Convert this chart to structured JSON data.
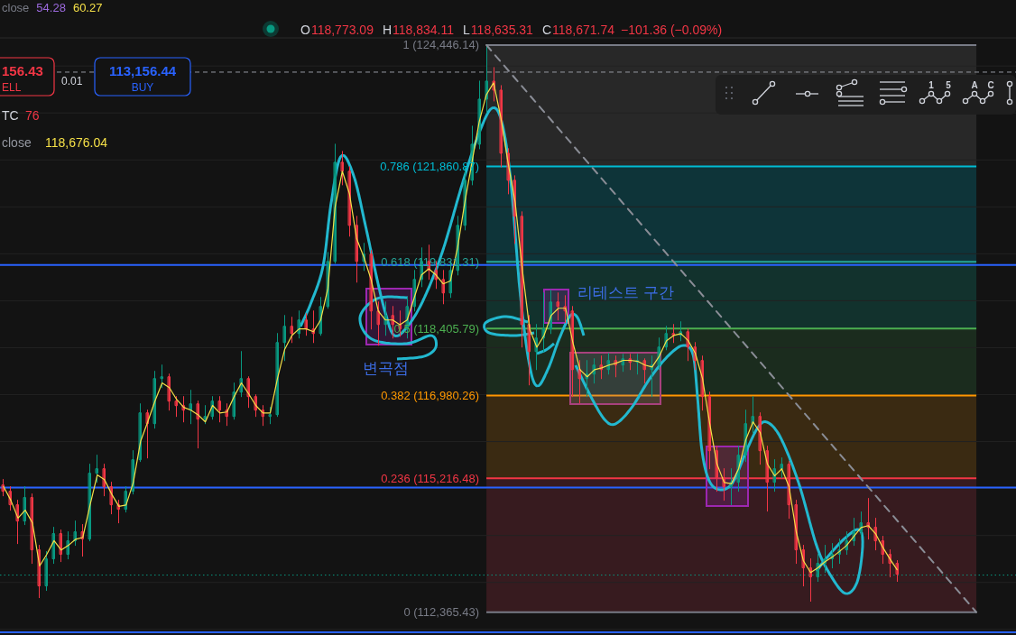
{
  "chart_data": {
    "type": "candlestick",
    "categories": [
      null,
      null,
      null,
      null,
      null,
      null,
      null,
      null,
      null,
      null,
      null,
      null,
      null,
      null,
      null,
      null,
      null,
      null,
      null,
      null,
      null,
      null,
      null,
      null,
      null,
      null,
      null,
      null,
      null,
      null,
      null,
      null,
      null,
      null,
      null,
      null,
      null,
      null,
      null,
      null,
      null,
      null,
      null,
      null,
      null,
      null,
      null,
      null,
      null,
      null,
      null,
      null,
      null,
      null,
      null,
      null,
      null,
      null,
      null,
      null,
      null,
      null,
      null,
      null,
      null,
      null,
      null,
      null,
      null,
      null,
      null,
      null,
      null,
      null,
      null,
      null,
      null,
      null,
      null,
      null,
      null,
      null,
      null,
      null,
      null,
      null,
      null,
      null,
      null,
      null,
      null,
      null,
      null,
      null,
      null,
      null,
      null,
      null,
      null,
      null,
      null,
      null,
      null,
      null,
      null,
      null,
      null,
      null,
      null,
      null,
      null,
      null,
      null,
      null,
      null,
      null,
      null,
      null,
      null,
      null,
      null,
      null,
      null,
      null,
      null,
      null,
      null,
      null,
      null,
      null,
      null,
      null,
      null,
      null,
      null,
      null,
      null,
      null,
      null,
      null,
      null
    ],
    "ohlc": [
      [
        115076,
        115192,
        114846,
        114942
      ],
      [
        114942,
        115038,
        114539,
        114654
      ],
      [
        114654,
        114750,
        113828,
        114308
      ],
      [
        114308,
        115038,
        114232,
        114808
      ],
      [
        114808,
        114884,
        113406,
        113694
      ],
      [
        113694,
        113790,
        112676,
        112926
      ],
      [
        112926,
        113656,
        112830,
        113502
      ],
      [
        113502,
        114174,
        113406,
        114040
      ],
      [
        114040,
        114116,
        113444,
        113598
      ],
      [
        113598,
        114078,
        113502,
        113886
      ],
      [
        113886,
        114308,
        113790,
        114078
      ],
      [
        114078,
        114232,
        113560,
        113924
      ],
      [
        113924,
        115518,
        113886,
        115326
      ],
      [
        115326,
        115710,
        115134,
        115422
      ],
      [
        115422,
        115518,
        114846,
        115038
      ],
      [
        115038,
        115134,
        114462,
        114654
      ],
      [
        114654,
        114750,
        114270,
        114558
      ],
      [
        114558,
        115038,
        114500,
        114942
      ],
      [
        114942,
        115806,
        114884,
        115614
      ],
      [
        115614,
        116804,
        115576,
        116612
      ],
      [
        116612,
        116670,
        115652,
        116382
      ],
      [
        116382,
        117496,
        116286,
        117342
      ],
      [
        117342,
        117630,
        117150,
        117380
      ],
      [
        117380,
        117438,
        116670,
        116862
      ],
      [
        116862,
        116958,
        116536,
        116766
      ],
      [
        116766,
        116958,
        116420,
        116670
      ],
      [
        116670,
        117092,
        116382,
        116804
      ],
      [
        116804,
        116862,
        115864,
        116478
      ],
      [
        116478,
        116766,
        116382,
        116536
      ],
      [
        116536,
        116958,
        116478,
        116862
      ],
      [
        116862,
        116958,
        116420,
        116670
      ],
      [
        116670,
        116804,
        116344,
        116536
      ],
      [
        116536,
        117246,
        116478,
        117054
      ],
      [
        117054,
        117918,
        116958,
        117342
      ],
      [
        117342,
        117380,
        116728,
        116958
      ],
      [
        116958,
        116996,
        116536,
        116670
      ],
      [
        116670,
        116766,
        116344,
        116536
      ],
      [
        116536,
        116728,
        116382,
        116574
      ],
      [
        116574,
        118302,
        116536,
        118110
      ],
      [
        118110,
        118686,
        117726,
        118456
      ],
      [
        118456,
        118648,
        118110,
        118302
      ],
      [
        118302,
        118782,
        118206,
        118590
      ],
      [
        118590,
        118724,
        118264,
        118398
      ],
      [
        118398,
        118782,
        118110,
        118302
      ],
      [
        118302,
        119070,
        118264,
        118878
      ],
      [
        118878,
        120030,
        118840,
        119838
      ],
      [
        119838,
        122334,
        119800,
        121950
      ],
      [
        121950,
        122180,
        121470,
        121758
      ],
      [
        121758,
        121854,
        120376,
        120606
      ],
      [
        120606,
        120798,
        119396,
        119838
      ],
      [
        119838,
        120222,
        119646,
        119992
      ],
      [
        119992,
        120068,
        118398,
        118782
      ],
      [
        118782,
        118974,
        118052,
        118494
      ],
      [
        118494,
        118974,
        118264,
        118686
      ],
      [
        118686,
        118878,
        118206,
        118494
      ],
      [
        118494,
        118782,
        118244,
        118398
      ],
      [
        118398,
        119070,
        118206,
        118878
      ],
      [
        118878,
        119646,
        118782,
        119454
      ],
      [
        119454,
        120126,
        119300,
        119838
      ],
      [
        119838,
        120184,
        119454,
        119646
      ],
      [
        119646,
        119838,
        119262,
        119454
      ],
      [
        119454,
        119646,
        118936,
        119166
      ],
      [
        119166,
        119838,
        119070,
        119646
      ],
      [
        119646,
        120798,
        119550,
        120606
      ],
      [
        120606,
        121854,
        120510,
        121566
      ],
      [
        121566,
        122718,
        121470,
        122334
      ],
      [
        122334,
        123678,
        122238,
        123294
      ],
      [
        123294,
        124446,
        123006,
        123678
      ],
      [
        123678,
        123966,
        123256,
        123486
      ],
      [
        123486,
        123582,
        121854,
        122142
      ],
      [
        122142,
        122238,
        121278,
        121566
      ],
      [
        121566,
        121662,
        120222,
        120798
      ],
      [
        120798,
        120894,
        118014,
        118494
      ],
      [
        118494,
        118686,
        117208,
        117918
      ],
      [
        117918,
        118494,
        117534,
        118206
      ],
      [
        118206,
        119166,
        117918,
        118398
      ],
      [
        118398,
        119224,
        118302,
        118974
      ],
      [
        118974,
        119166,
        118590,
        118878
      ],
      [
        118878,
        119108,
        118532,
        118782
      ],
      [
        118782,
        118878,
        116958,
        117534
      ],
      [
        117534,
        117726,
        116824,
        117342
      ],
      [
        117342,
        117726,
        116958,
        117438
      ],
      [
        117438,
        117764,
        117246,
        117630
      ],
      [
        117630,
        117822,
        117342,
        117534
      ],
      [
        117534,
        117880,
        117438,
        117726
      ],
      [
        117726,
        117822,
        117380,
        117630
      ],
      [
        117630,
        117860,
        117496,
        117764
      ],
      [
        117764,
        117860,
        117534,
        117688
      ],
      [
        117688,
        117860,
        117438,
        117726
      ],
      [
        117726,
        117764,
        117246,
        117534
      ],
      [
        117534,
        117822,
        116958,
        117630
      ],
      [
        117630,
        118206,
        117534,
        118014
      ],
      [
        118014,
        118456,
        117956,
        118302
      ],
      [
        118302,
        118494,
        118110,
        118264
      ],
      [
        118264,
        118552,
        118148,
        118340
      ],
      [
        118340,
        118398,
        117726,
        118014
      ],
      [
        118014,
        118110,
        117534,
        117726
      ],
      [
        117726,
        117822,
        116670,
        116958
      ],
      [
        116958,
        117054,
        115422,
        115806
      ],
      [
        115806,
        115902,
        114942,
        115230
      ],
      [
        115230,
        115422,
        114750,
        115038
      ],
      [
        115038,
        115422,
        114654,
        115134
      ],
      [
        115134,
        115902,
        114942,
        115710
      ],
      [
        115710,
        116670,
        115576,
        116382
      ],
      [
        116382,
        116958,
        116190,
        116536
      ],
      [
        116536,
        116612,
        115518,
        115806
      ],
      [
        115806,
        115902,
        114520,
        115134
      ],
      [
        115134,
        115614,
        114942,
        115422
      ],
      [
        115422,
        115652,
        115230,
        115518
      ],
      [
        115518,
        115576,
        114366,
        114654
      ],
      [
        114654,
        114750,
        113406,
        113694
      ],
      [
        113694,
        113790,
        112926,
        113310
      ],
      [
        113310,
        113502,
        112600,
        113118
      ],
      [
        113118,
        113598,
        113022,
        113406
      ],
      [
        113406,
        113790,
        113214,
        113502
      ],
      [
        113502,
        113828,
        113310,
        113598
      ],
      [
        113598,
        113924,
        113406,
        113694
      ],
      [
        113694,
        114078,
        113598,
        113886
      ],
      [
        113886,
        114366,
        113790,
        114078
      ],
      [
        114078,
        114500,
        113963,
        114270
      ],
      [
        114270,
        114788,
        113924,
        114174
      ],
      [
        114174,
        114366,
        113694,
        113886
      ],
      [
        113886,
        113982,
        113406,
        113598
      ],
      [
        113598,
        113694,
        113118,
        113406
      ],
      [
        113406,
        113464,
        113022,
        113176
      ],
      null,
      null,
      null,
      null,
      null,
      null,
      null,
      null,
      null,
      null,
      null,
      null,
      null,
      null,
      null,
      null
    ],
    "series": [
      {
        "type": "line",
        "color": "#f5e048",
        "values": [
          115040,
          114750,
          114370,
          114540,
          114270,
          113350,
          113600,
          113890,
          113690,
          113790,
          113920,
          113960,
          114650,
          115290,
          115190,
          114880,
          114620,
          114650,
          115130,
          116000,
          116420,
          116860,
          117250,
          117150,
          116900,
          116730,
          116670,
          116570,
          116420,
          116770,
          116610,
          116630,
          116960,
          117250,
          117020,
          116770,
          116610,
          116610,
          117340,
          117960,
          118260,
          118400,
          118400,
          118340,
          118590,
          119260,
          120990,
          121760,
          121280,
          120320,
          119930,
          119450,
          118780,
          118590,
          118590,
          118490,
          118590,
          119070,
          119550,
          119680,
          119550,
          119360,
          119420,
          120130,
          121090,
          121950,
          122810,
          123390,
          123640,
          122910,
          121950,
          121090,
          119650,
          118400,
          118010,
          118260,
          118690,
          118840,
          118840,
          118110,
          117530,
          117380,
          117530,
          117570,
          117630,
          117670,
          117730,
          117730,
          117710,
          117630,
          117590,
          117820,
          118150,
          118260,
          118300,
          118150,
          117880,
          117340,
          116380,
          115520,
          115130,
          115100,
          115420,
          116040,
          116420,
          116190,
          115520,
          115270,
          115420,
          115040,
          114080,
          113460,
          113210,
          113310,
          113440,
          113540,
          113660,
          113790,
          113980,
          114170,
          114210,
          114040,
          113750,
          113500,
          113270,
          null,
          null,
          null,
          null,
          null,
          null,
          null,
          null,
          null,
          null,
          null,
          null,
          null,
          null,
          null,
          null
        ]
      },
      {
        "type": "line",
        "color": "#8a8d96",
        "line_style": "dashed",
        "values": [
          null,
          null,
          null,
          null,
          null,
          null,
          null,
          null,
          null,
          null,
          null,
          null,
          null,
          null,
          null,
          null,
          null,
          null,
          null,
          null,
          null,
          null,
          null,
          null,
          null,
          null,
          null,
          null,
          null,
          null,
          null,
          null,
          null,
          null,
          null,
          null,
          null,
          null,
          null,
          null,
          null,
          null,
          null,
          null,
          null,
          null,
          null,
          null,
          null,
          null,
          null,
          null,
          null,
          null,
          null,
          null,
          null,
          null,
          null,
          null,
          null,
          null,
          null,
          null,
          null,
          null,
          null,
          124446.14,
          null,
          null,
          null,
          null,
          null,
          null,
          null,
          null,
          null,
          null,
          null,
          null,
          null,
          null,
          null,
          null,
          null,
          null,
          null,
          null,
          null,
          null,
          null,
          null,
          null,
          null,
          null,
          null,
          null,
          null,
          null,
          null,
          null,
          null,
          null,
          null,
          null,
          null,
          null,
          null,
          null,
          null,
          null,
          null,
          null,
          null,
          null,
          null,
          null,
          null,
          null,
          null,
          null,
          null,
          null,
          null,
          null,
          null,
          null,
          null,
          null,
          null,
          null,
          null,
          null,
          null,
          null,
          112365.43,
          null,
          null,
          null,
          null,
          null
        ]
      }
    ],
    "ylim": [
      111880,
      124580
    ],
    "yticks": [
      {
        "value": 112000,
        "label": null
      },
      {
        "value": 113000,
        "label": null
      },
      {
        "value": 114000,
        "label": null
      },
      {
        "value": 115000,
        "label": null
      },
      {
        "value": 116000,
        "label": null
      },
      {
        "value": 117000,
        "label": null
      },
      {
        "value": 118000,
        "label": null
      },
      {
        "value": 119000,
        "label": null
      },
      {
        "value": 120000,
        "label": null
      },
      {
        "value": 121000,
        "label": null
      },
      {
        "value": 122000,
        "label": null
      },
      {
        "value": 123000,
        "label": null
      },
      {
        "value": 124000,
        "label": null
      }
    ],
    "grid": "y",
    "bands": [
      {
        "axis": "y",
        "from": 121860.87,
        "to": 124446.14,
        "color": "#282828"
      },
      {
        "axis": "y",
        "from": 119831.31,
        "to": 121860.87,
        "color": "#0e3439"
      },
      {
        "axis": "y",
        "from": 118405.79,
        "to": 119831.31,
        "color": "#12322d"
      },
      {
        "axis": "y",
        "from": 116980.26,
        "to": 118405.79,
        "color": "#1b2c1e"
      },
      {
        "axis": "y",
        "from": 115216.48,
        "to": 116980.26,
        "color": "#3a2a12"
      },
      {
        "axis": "y",
        "from": 112365.43,
        "to": 115216.48,
        "color": "#371b1f"
      }
    ],
    "ref_lines": [
      {
        "axis": "y",
        "value": 124446.14,
        "label": "1 (124,446.14)",
        "color": "#787b86"
      },
      {
        "axis": "y",
        "value": 121860.87,
        "label": "0.786 (121,860.87)",
        "color": "#00bcd4"
      },
      {
        "axis": "y",
        "value": 119831.31,
        "label": "0.618 (119,831.31)",
        "color": "#26a69a"
      },
      {
        "axis": "y",
        "value": 118405.79,
        "label": "0.5 (118,405.79)",
        "color": "#4caf50"
      },
      {
        "axis": "y",
        "value": 116980.26,
        "label": "0.382 (116,980.26)",
        "color": "#ff9800"
      },
      {
        "axis": "y",
        "value": 115216.48,
        "label": "0.236 (115,216.48)",
        "color": "#f23645"
      },
      {
        "axis": "y",
        "value": 112365.43,
        "label": "0 (112,365.43)",
        "color": "#787b86"
      },
      {
        "axis": "y",
        "value": 119760,
        "color": "#2962ff"
      },
      {
        "axis": "y",
        "value": 115020,
        "color": "#2962ff"
      },
      {
        "axis": "y",
        "value": 111940,
        "color": "#2962ff"
      },
      {
        "axis": "y",
        "value": 123870,
        "color": "#9598a1",
        "line_style": "dashed"
      },
      {
        "axis": "y",
        "value": 113156.44,
        "color": "#089981",
        "line_style": "dotted"
      }
    ],
    "annotations": [
      "close",
      "54.28",
      "60.27",
      "O",
      "118,773.09",
      "H",
      "118,834.11",
      "L",
      "118,635.31",
      "C",
      "118,671.74",
      "−101.36 (−0.09%)",
      "156.43",
      "ELL",
      "0.01",
      "113,156.44",
      "BUY",
      "TC",
      "76",
      "close",
      "118,676.04",
      "변곡점",
      "리테스트 구간",
      "1",
      "5",
      "A",
      "C"
    ]
  }
}
